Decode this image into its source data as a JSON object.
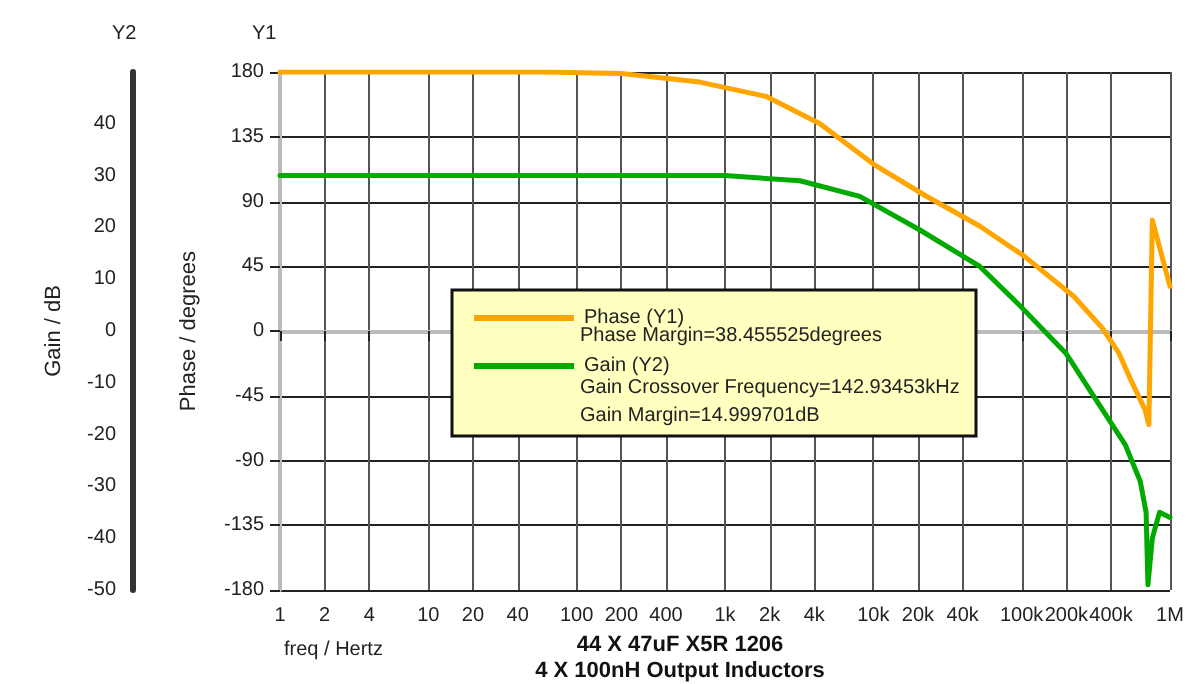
{
  "chart_data": {
    "type": "line",
    "title": "44 X 47uF X5R 1206",
    "subtitle": "4 X 100nH Output Inductors",
    "xlabel": "freq / Hertz",
    "ylabel": "Phase / degrees",
    "y2label": "Gain / dB",
    "annotations": [
      "Phase Margin=38.455525degrees",
      "Gain Crossover Frequency=142.93453kHz",
      "Gain Margin=14.999701dB",
      "Y1",
      "Y2"
    ],
    "log": "x",
    "grid": true,
    "legend": "left",
    "marker": "none",
    "line_style": "solid",
    "xlim": [
      1,
      1000000
    ],
    "xticks": [
      1,
      2,
      4,
      10,
      20,
      40,
      100,
      200,
      400,
      {
        "value": 1000,
        "label": "1k"
      },
      {
        "value": 2000,
        "label": "2k"
      },
      {
        "value": 4000,
        "label": "4k"
      },
      {
        "value": 10000,
        "label": "10k"
      },
      {
        "value": 20000,
        "label": "20k"
      },
      {
        "value": 40000,
        "label": "40k"
      },
      {
        "value": 100000,
        "label": "100k"
      },
      {
        "value": 200000,
        "label": "200k"
      },
      {
        "value": 400000,
        "label": "400k"
      },
      {
        "value": 1000000,
        "label": "1M"
      }
    ],
    "ylim": [
      -180,
      180
    ],
    "yticks": [
      -180,
      -135,
      -90,
      -45,
      0,
      45,
      90,
      135,
      180
    ],
    "y2lim": [
      -50,
      50
    ],
    "y2ticks": [
      -50,
      -40,
      -30,
      -20,
      -10,
      0,
      10,
      20,
      30,
      40
    ],
    "series": [
      {
        "name": "Phase (Y1)",
        "color": "#ffa500",
        "x": [
          1,
          60,
          200,
          676,
          1900,
          4370,
          10000,
          22500,
          52000,
          104000,
          225000,
          350000,
          450000,
          550000,
          680000,
          720000,
          760000,
          1000000
        ],
        "values": [
          180,
          180,
          179,
          173,
          163,
          144,
          116,
          94,
          73,
          52,
          24,
          2,
          -15,
          -35,
          -55,
          -65,
          77,
          31
        ]
      },
      {
        "name": "Gain (Y2)",
        "color": "#00aa00",
        "axis": "y2",
        "x": [
          1,
          1000,
          3200,
          8100,
          20600,
          52000,
          98000,
          200000,
          338000,
          500000,
          630000,
          690000,
          710000,
          760000,
          850000,
          1000000
        ],
        "values": [
          30,
          30,
          29,
          26,
          19.5,
          12.5,
          4.8,
          -4.4,
          -14.5,
          -22,
          -29,
          -35,
          -49,
          -40,
          -35,
          -36
        ]
      }
    ]
  }
}
